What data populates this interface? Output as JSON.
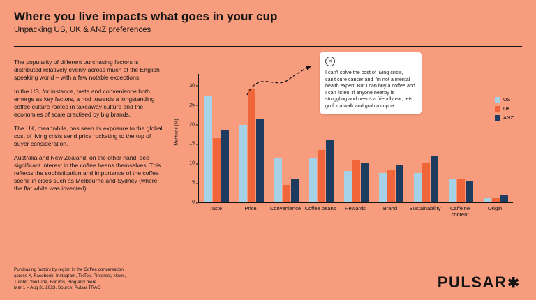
{
  "page": {
    "title": "Where you live impacts what goes in your cup",
    "subtitle": "Unpacking US, UK & ANZ preferences",
    "background": "#F89C7E"
  },
  "body": {
    "paragraphs": [
      "The popularity of different purchasing factors is distributed relatively evenly across much of the English-speaking world – with a few notable exceptions.",
      "In the US, for instance, taste and convenience both emerge as key factors, a nod towards a longstanding coffee culture rooted in takeaway culture and the economies of scale practised by big brands.",
      "The UK, meanwhile, has seen its exposure to the global cost of living crisis send price rocketing to the top of buyer consideration.",
      "Australia and New Zealand, on the other hand, see significant interest in the coffee beans themselves. This reflects the sophistication and importance of the coffee scene in cities such as Melbourne and Sydney (where the flat white was invented)."
    ]
  },
  "callout": {
    "icon": "x-social-icon",
    "text": "I can't solve the cost of living crisis, I can't cure cancer and I'm not a mental health expert. But I can buy a coffee and I can listen. If anyone nearby is struggling and needs a friendly ear, lets go for a walk and grab a cuppa."
  },
  "chart_data": {
    "type": "bar",
    "categories": [
      "Taste",
      "Price",
      "Convenience",
      "Coffee beans",
      "Rewards",
      "Brand",
      "Sustainability",
      "Caffeine content",
      "Origin"
    ],
    "series": [
      {
        "name": "US",
        "color": "#A6D2E8",
        "values": [
          27.5,
          20,
          11.5,
          11.5,
          8,
          7.5,
          7.5,
          6,
          1
        ]
      },
      {
        "name": "UK",
        "color": "#F0663A",
        "values": [
          16.5,
          29,
          4.5,
          13.5,
          11,
          8.5,
          10,
          6,
          1
        ]
      },
      {
        "name": "ANZ",
        "color": "#1D3C5F",
        "values": [
          18.5,
          21.5,
          6,
          16,
          10,
          9.5,
          12,
          5.5,
          2
        ]
      }
    ],
    "title": "",
    "xlabel": "",
    "ylabel": "Mentions (%)",
    "yticks": [
      0,
      5,
      10,
      15,
      20,
      25,
      30
    ],
    "ylim": [
      0,
      33
    ],
    "grid": false,
    "legend_position": "right"
  },
  "footer": {
    "source": "Purchasing factors by region in the Coffee conversation\nacross X, Facebook, Instagram, TikTok, Pinterest, News,\nTumblr, YouTube, Forums, Blog and more.\nMar 1 – Aug 31 2023. Source: Pulsar TRAC",
    "logo_text": "PULSAR",
    "logo_mark": "✱"
  }
}
